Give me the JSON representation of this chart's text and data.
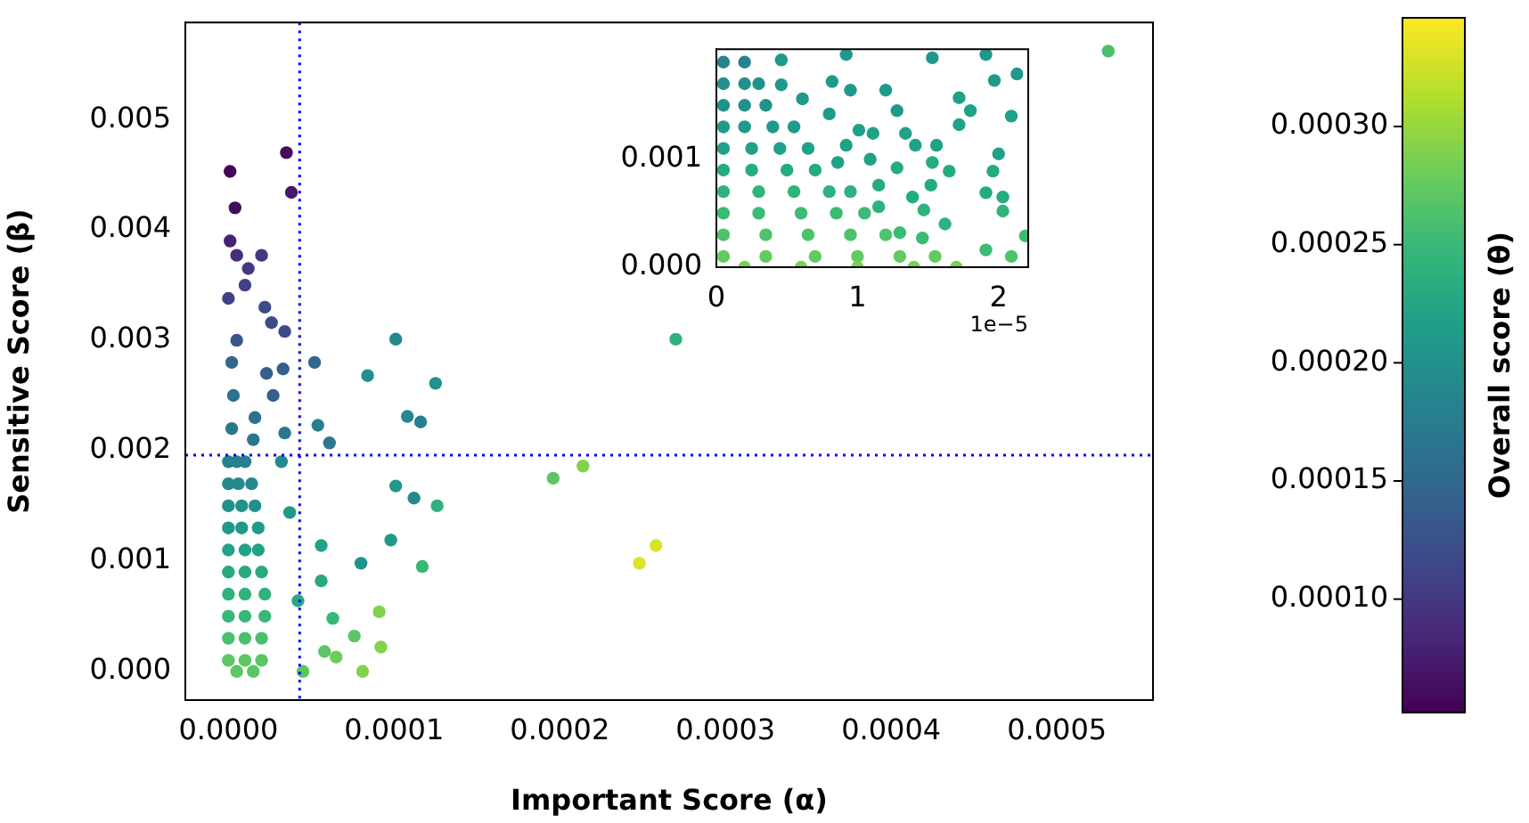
{
  "chart_data": [
    {
      "type": "scatter",
      "xlabel": "Important Score (α)",
      "ylabel": "Sensitive Score (β)",
      "clabel": "Overall score (θ)",
      "x": [
        3.5e-05,
        1e-06,
        3.8e-05,
        4e-06,
        1e-06,
        5e-06,
        2e-05,
        1.2e-05,
        1e-05,
        0,
        2.2e-05,
        3.4e-05,
        2.6e-05,
        5e-06,
        5.2e-05,
        3.3e-05,
        2.3e-05,
        2.7e-05,
        1.6e-05,
        5.4e-05,
        3.4e-05,
        1.5e-05,
        6.1e-05,
        0.000101,
        8.4e-05,
        0.000125,
        0.000108,
        0.000116,
        0.000101,
        0.000112,
        0.000126,
        9.8e-05,
        0.000117,
        8e-05,
        5.6e-05,
        5.6e-05,
        6.3e-05,
        9.1e-05,
        9.2e-05,
        7.6e-05,
        8.1e-05,
        6.5e-05,
        5.8e-05,
        4.5e-05,
        4.2e-05,
        3.7e-05,
        3.2e-05,
        0.00027,
        0.000214,
        0.000196,
        0.000248,
        0.000258,
        0.000531,
        2e-06,
        3e-06,
        2e-06,
        0,
        5e-06,
        1e-05,
        0,
        6e-06,
        1.4e-05,
        0,
        8e-06,
        1.6e-05,
        0,
        8e-06,
        1.8e-05,
        0,
        1e-05,
        1.8e-05,
        0,
        1e-05,
        2e-05,
        0,
        1e-05,
        2.2e-05,
        0,
        1e-05,
        2.2e-05,
        0,
        1e-05,
        2e-05,
        0,
        1e-05,
        2e-05,
        5e-06,
        1.5e-05
      ],
      "values": [
        0.0047,
        0.00453,
        0.00434,
        0.0042,
        0.0039,
        0.00377,
        0.00377,
        0.00365,
        0.0035,
        0.00338,
        0.0033,
        0.00308,
        0.00316,
        0.003,
        0.0028,
        0.00274,
        0.0027,
        0.0025,
        0.0023,
        0.00223,
        0.00216,
        0.0021,
        0.00207,
        0.00301,
        0.00268,
        0.00261,
        0.00231,
        0.00226,
        0.00168,
        0.00157,
        0.0015,
        0.00119,
        0.00095,
        0.00098,
        0.00114,
        0.00082,
        0.00048,
        0.00054,
        0.00022,
        0.00032,
        0,
        0.00013,
        0.00018,
        0,
        0.00064,
        0.00144,
        0.0019,
        0.00301,
        0.00186,
        0.00175,
        0.00098,
        0.00114,
        0.00562,
        0.0022,
        0.0025,
        0.0028,
        0.0019,
        0.0019,
        0.0019,
        0.0017,
        0.0017,
        0.0017,
        0.0015,
        0.0015,
        0.0015,
        0.0013,
        0.0013,
        0.0013,
        0.0011,
        0.0011,
        0.0011,
        0.0009,
        0.0009,
        0.0009,
        0.0007,
        0.0007,
        0.0007,
        0.0005,
        0.0005,
        0.0005,
        0.0003,
        0.0003,
        0.0003,
        0.0001,
        0.0001,
        0.0001,
        0,
        0
      ],
      "cvalues": [
        6e-05,
        5.5e-05,
        7e-05,
        6e-05,
        8e-05,
        9e-05,
        0.0001,
        0.0001,
        0.00011,
        0.00011,
        0.00012,
        0.00012,
        0.00012,
        0.00013,
        0.00015,
        0.00014,
        0.00014,
        0.00014,
        0.00016,
        0.00018,
        0.00017,
        0.00017,
        0.00017,
        0.00019,
        0.0002,
        0.0002,
        0.00019,
        0.00018,
        0.00021,
        0.00019,
        0.00024,
        0.00021,
        0.00025,
        0.0002,
        0.00022,
        0.00023,
        0.00025,
        0.00029,
        0.00029,
        0.00027,
        0.00029,
        0.00028,
        0.00027,
        0.00027,
        0.00023,
        0.00021,
        0.00019,
        0.00024,
        0.00029,
        0.00027,
        0.00033,
        0.00033,
        0.00026,
        0.00017,
        0.00016,
        0.00015,
        0.00018,
        0.00018,
        0.00018,
        0.00019,
        0.00019,
        0.00019,
        0.0002,
        0.0002,
        0.0002,
        0.00021,
        0.00021,
        0.00021,
        0.00022,
        0.00022,
        0.00022,
        0.00023,
        0.00023,
        0.00023,
        0.00024,
        0.00024,
        0.00024,
        0.00025,
        0.00025,
        0.00025,
        0.00026,
        0.00026,
        0.00026,
        0.00027,
        0.00027,
        0.00027,
        0.00027,
        0.00027
      ],
      "xlim": [
        -2.6e-05,
        0.000558
      ],
      "xticks": [
        {
          "value": 0,
          "label": "0.0000"
        },
        {
          "value": 0.0001,
          "label": "0.0001"
        },
        {
          "value": 0.0002,
          "label": "0.0002"
        },
        {
          "value": 0.0003,
          "label": "0.0003"
        },
        {
          "value": 0.0004,
          "label": "0.0004"
        },
        {
          "value": 0.0005,
          "label": "0.0005"
        }
      ],
      "ylim": [
        -0.00026,
        0.00588
      ],
      "yticks": [
        {
          "value": 0,
          "label": "0.000"
        },
        {
          "value": 0.001,
          "label": "0.001"
        },
        {
          "value": 0.002,
          "label": "0.002"
        },
        {
          "value": 0.003,
          "label": "0.003"
        },
        {
          "value": 0.004,
          "label": "0.004"
        },
        {
          "value": 0.005,
          "label": "0.005"
        }
      ],
      "clim": [
        5.2e-05,
        0.000346
      ],
      "cticks": [
        {
          "value": 0.0001,
          "label": "0.00010"
        },
        {
          "value": 0.00015,
          "label": "0.00015"
        },
        {
          "value": 0.0002,
          "label": "0.00020"
        },
        {
          "value": 0.00025,
          "label": "0.00025"
        },
        {
          "value": 0.0003,
          "label": "0.00030"
        }
      ],
      "ref_lines": [
        {
          "axis": "x",
          "value": 4.3e-05,
          "color": "#0000ff",
          "line_style": "dotted"
        },
        {
          "axis": "y",
          "value": 0.00196,
          "color": "#0000ff",
          "line_style": "dotted"
        }
      ],
      "marker": "circle",
      "grid": false,
      "legend": false
    },
    {
      "type": "scatter",
      "annotations": [
        "1e−5"
      ],
      "x": [
        0.46,
        0.92,
        1.53,
        1.91,
        2.13,
        1.97,
        1.2,
        0.95,
        0.82,
        0.61,
        0.46,
        1.72,
        1.28,
        1.8,
        2.09,
        0.8,
        1.72,
        1.01,
        1.34,
        1.11,
        1.41,
        1.56,
        2,
        0.92,
        1.53,
        1.65,
        1.28,
        1.96,
        1.09,
        0.86,
        1.52,
        1.15,
        1.91,
        1.39,
        2.03,
        1.47,
        2.03,
        1.15,
        1.62,
        1.3,
        1.46,
        2.19,
        1.91,
        2.09,
        0.05,
        0.2,
        0.05,
        0.2,
        0.3,
        0.05,
        0.2,
        0.35,
        0.05,
        0.2,
        0.4,
        0.55,
        0.05,
        0.25,
        0.45,
        0.65,
        0.05,
        0.25,
        0.5,
        0.7,
        0.05,
        0.3,
        0.55,
        0.8,
        0.95,
        0.05,
        0.3,
        0.6,
        0.85,
        1.05,
        0.05,
        0.35,
        0.65,
        0.95,
        1.2,
        0.05,
        0.35,
        0.7,
        1,
        1.3,
        1.55,
        0.2,
        0.6,
        1,
        1.4,
        1.7
      ],
      "values": [
        0.00192,
        0.00197,
        0.00194,
        0.00197,
        0.00179,
        0.00173,
        0.00164,
        0.00164,
        0.00172,
        0.00156,
        0.00169,
        0.00157,
        0.00145,
        0.00145,
        0.0014,
        0.00142,
        0.00132,
        0.00127,
        0.00124,
        0.00124,
        0.00113,
        0.00113,
        0.00105,
        0.00113,
        0.00097,
        0.00089,
        0.00092,
        0.00089,
        0.001,
        0.00097,
        0.00076,
        0.00076,
        0.00069,
        0.00065,
        0.00065,
        0.00053,
        0.00052,
        0.00056,
        0.0004,
        0.00032,
        0.00027,
        0.00029,
        0.00016,
        0.0001,
        0.0019,
        0.0019,
        0.0017,
        0.0017,
        0.0017,
        0.0015,
        0.0015,
        0.0015,
        0.0013,
        0.0013,
        0.0013,
        0.0013,
        0.0011,
        0.0011,
        0.0011,
        0.0011,
        0.0009,
        0.0009,
        0.0009,
        0.0009,
        0.0007,
        0.0007,
        0.0007,
        0.0007,
        0.0007,
        0.0005,
        0.0005,
        0.0005,
        0.0005,
        0.0005,
        0.0003,
        0.0003,
        0.0003,
        0.0003,
        0.0003,
        0.0001,
        0.0001,
        0.0001,
        0.0001,
        0.0001,
        0.0001,
        0,
        0,
        0,
        0,
        0
      ],
      "colors": [
        "#1f9a8a",
        "#1f9a8a",
        "#1f9a8a",
        "#1f9a8a",
        "#1f9a8a",
        "#1f9a8a",
        "#1f9a8a",
        "#1f9a8a",
        "#1f9a8a",
        "#1f9a8a",
        "#1f9a8a",
        "#1fa287",
        "#1f9a8a",
        "#1fa287",
        "#1fa287",
        "#1f9a8a",
        "#1fa287",
        "#1fa287",
        "#1fa287",
        "#1fa287",
        "#1fa287",
        "#1fa287",
        "#1fa287",
        "#1fa287",
        "#25ab82",
        "#25ab82",
        "#25ab82",
        "#25ab82",
        "#1fa287",
        "#1fa287",
        "#25ab82",
        "#25ab82",
        "#25ab82",
        "#25ab82",
        "#25ab82",
        "#2eb37c",
        "#2eb37c",
        "#2eb37c",
        "#2eb37c",
        "#3bbb75",
        "#3bbb75",
        "#3bbb75",
        "#3bbb75",
        "#4ec36b",
        "#26828e",
        "#26828e",
        "#21918c",
        "#21918c",
        "#21918c",
        "#21918c",
        "#21918c",
        "#21918c",
        "#1f9a8a",
        "#1f9a8a",
        "#1f9a8a",
        "#1f9a8a",
        "#1fa287",
        "#1fa287",
        "#1fa287",
        "#1fa287",
        "#25ab82",
        "#25ab82",
        "#25ab82",
        "#25ab82",
        "#2eb37c",
        "#2eb37c",
        "#2eb37c",
        "#2eb37c",
        "#2eb37c",
        "#3bbb75",
        "#3bbb75",
        "#3bbb75",
        "#3bbb75",
        "#3bbb75",
        "#4ec36b",
        "#4ec36b",
        "#4ec36b",
        "#4ec36b",
        "#4ec36b",
        "#62cb5f",
        "#62cb5f",
        "#62cb5f",
        "#62cb5f",
        "#62cb5f",
        "#62cb5f",
        "#78d152",
        "#78d152",
        "#78d152",
        "#78d152",
        "#78d152"
      ],
      "xlim": [
        0,
        2.21
      ],
      "xticks": [
        0,
        1,
        2
      ],
      "ylim": [
        0,
        0.00202
      ],
      "yticks": [
        {
          "value": 0,
          "label": "0.000"
        },
        {
          "value": 0.001,
          "label": "0.001"
        }
      ],
      "marker": "circle",
      "grid": false,
      "legend": false
    }
  ]
}
